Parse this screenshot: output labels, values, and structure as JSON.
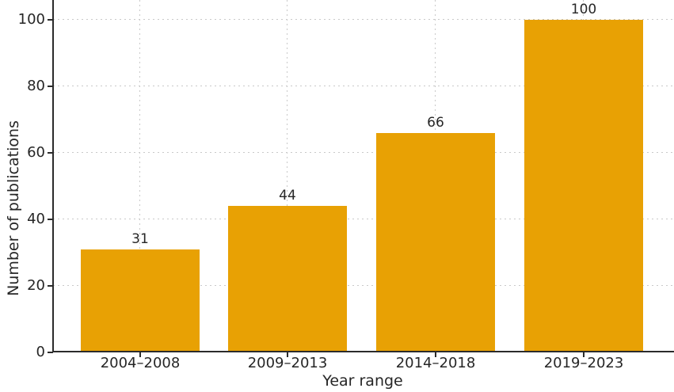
{
  "chart_data": {
    "type": "bar",
    "categories": [
      "2004–2008",
      "2009–2013",
      "2014–2018",
      "2019–2023"
    ],
    "values": [
      31,
      44,
      66,
      100
    ],
    "xlabel": "Year range",
    "ylabel": "Number of publications",
    "yticks": [
      0,
      20,
      40,
      60,
      80,
      100
    ],
    "ylim": [
      0,
      106
    ],
    "legend": "none",
    "grid": "dotted horizontal lines at y ticks and dotted vertical lines at each category center, drawn behind bars",
    "note": "figure title cropped out of frame at top",
    "bar_color": "#E8A104",
    "grid_color": "#c9c9c9",
    "axis_color": "#2b2b2b",
    "text_color": "#262626"
  }
}
